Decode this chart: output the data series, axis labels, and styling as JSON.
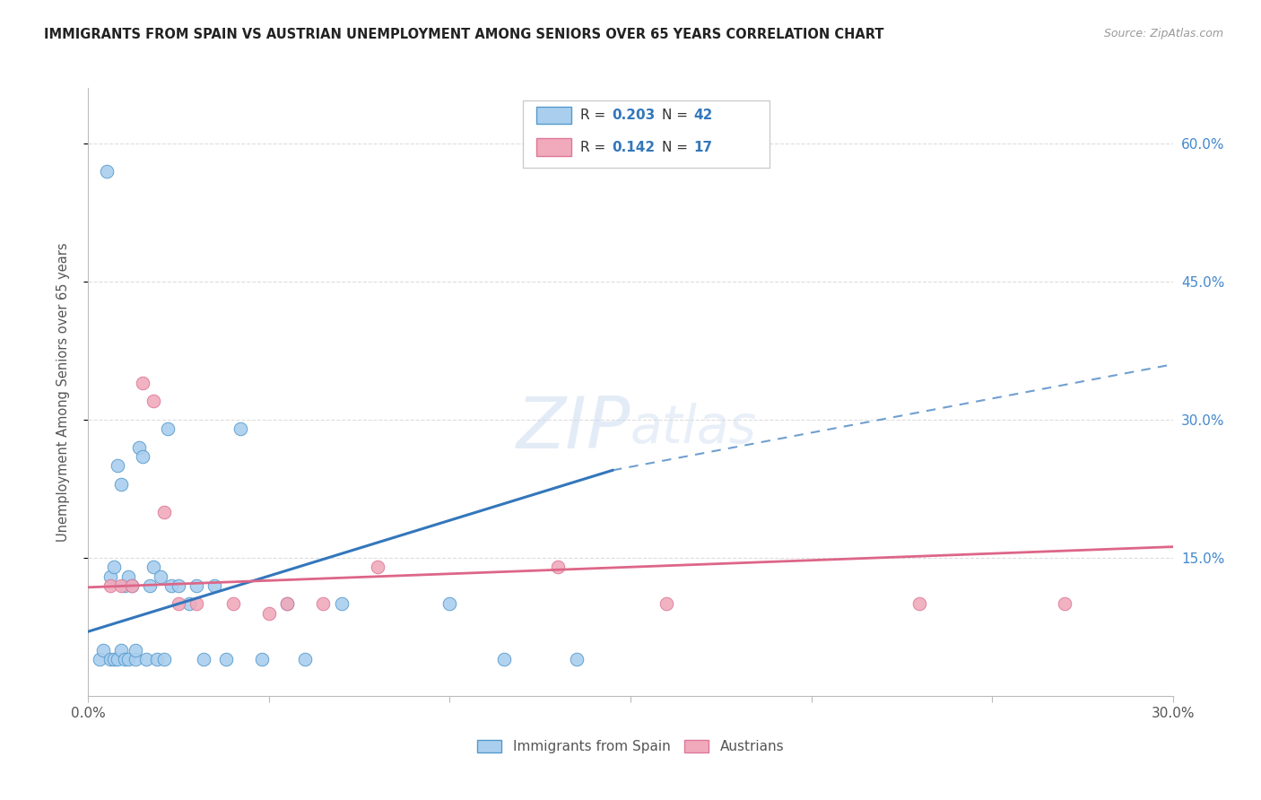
{
  "title": "IMMIGRANTS FROM SPAIN VS AUSTRIAN UNEMPLOYMENT AMONG SENIORS OVER 65 YEARS CORRELATION CHART",
  "source": "Source: ZipAtlas.com",
  "ylabel": "Unemployment Among Seniors over 65 years",
  "ytick_labels": [
    "60.0%",
    "45.0%",
    "30.0%",
    "15.0%"
  ],
  "ytick_vals": [
    0.6,
    0.45,
    0.3,
    0.15
  ],
  "xlim": [
    0.0,
    0.3
  ],
  "ylim": [
    0.0,
    0.66
  ],
  "legend_label1": "Immigrants from Spain",
  "legend_label2": "Austrians",
  "blue_color": "#aacfee",
  "pink_color": "#f0aabb",
  "blue_edge_color": "#5599cc",
  "pink_edge_color": "#dd7799",
  "blue_line_color": "#3377bb",
  "pink_line_color": "#dd6688",
  "blue_scatter_x": [
    0.003,
    0.004,
    0.005,
    0.006,
    0.006,
    0.007,
    0.007,
    0.008,
    0.008,
    0.009,
    0.009,
    0.01,
    0.01,
    0.011,
    0.011,
    0.012,
    0.013,
    0.013,
    0.014,
    0.015,
    0.016,
    0.017,
    0.018,
    0.019,
    0.02,
    0.021,
    0.022,
    0.023,
    0.025,
    0.028,
    0.03,
    0.032,
    0.035,
    0.038,
    0.042,
    0.048,
    0.055,
    0.06,
    0.07,
    0.1,
    0.115,
    0.135
  ],
  "blue_scatter_y": [
    0.04,
    0.05,
    0.57,
    0.13,
    0.04,
    0.14,
    0.04,
    0.25,
    0.04,
    0.23,
    0.05,
    0.12,
    0.04,
    0.13,
    0.04,
    0.12,
    0.04,
    0.05,
    0.27,
    0.26,
    0.04,
    0.12,
    0.14,
    0.04,
    0.13,
    0.04,
    0.29,
    0.12,
    0.12,
    0.1,
    0.12,
    0.04,
    0.12,
    0.04,
    0.29,
    0.04,
    0.1,
    0.04,
    0.1,
    0.1,
    0.04,
    0.04
  ],
  "pink_scatter_x": [
    0.006,
    0.009,
    0.012,
    0.015,
    0.018,
    0.021,
    0.025,
    0.04,
    0.05,
    0.055,
    0.065,
    0.08,
    0.13,
    0.16,
    0.23,
    0.27,
    0.03
  ],
  "pink_scatter_y": [
    0.12,
    0.12,
    0.12,
    0.34,
    0.32,
    0.2,
    0.1,
    0.1,
    0.09,
    0.1,
    0.1,
    0.14,
    0.14,
    0.1,
    0.1,
    0.1,
    0.1
  ],
  "blue_solid_trend_x": [
    0.0,
    0.145
  ],
  "blue_solid_trend_y": [
    0.07,
    0.245
  ],
  "blue_dash_trend_x": [
    0.145,
    0.3
  ],
  "blue_dash_trend_y": [
    0.245,
    0.36
  ],
  "pink_solid_trend_x": [
    0.0,
    0.3
  ],
  "pink_solid_trend_y": [
    0.118,
    0.162
  ],
  "xtick_positions": [
    0.0,
    0.05,
    0.1,
    0.15,
    0.2,
    0.25,
    0.3
  ],
  "grid_color": "#dddddd",
  "background_color": "#ffffff",
  "watermark_zip_color": "#ccddf0",
  "watermark_atlas_color": "#ccddf0"
}
